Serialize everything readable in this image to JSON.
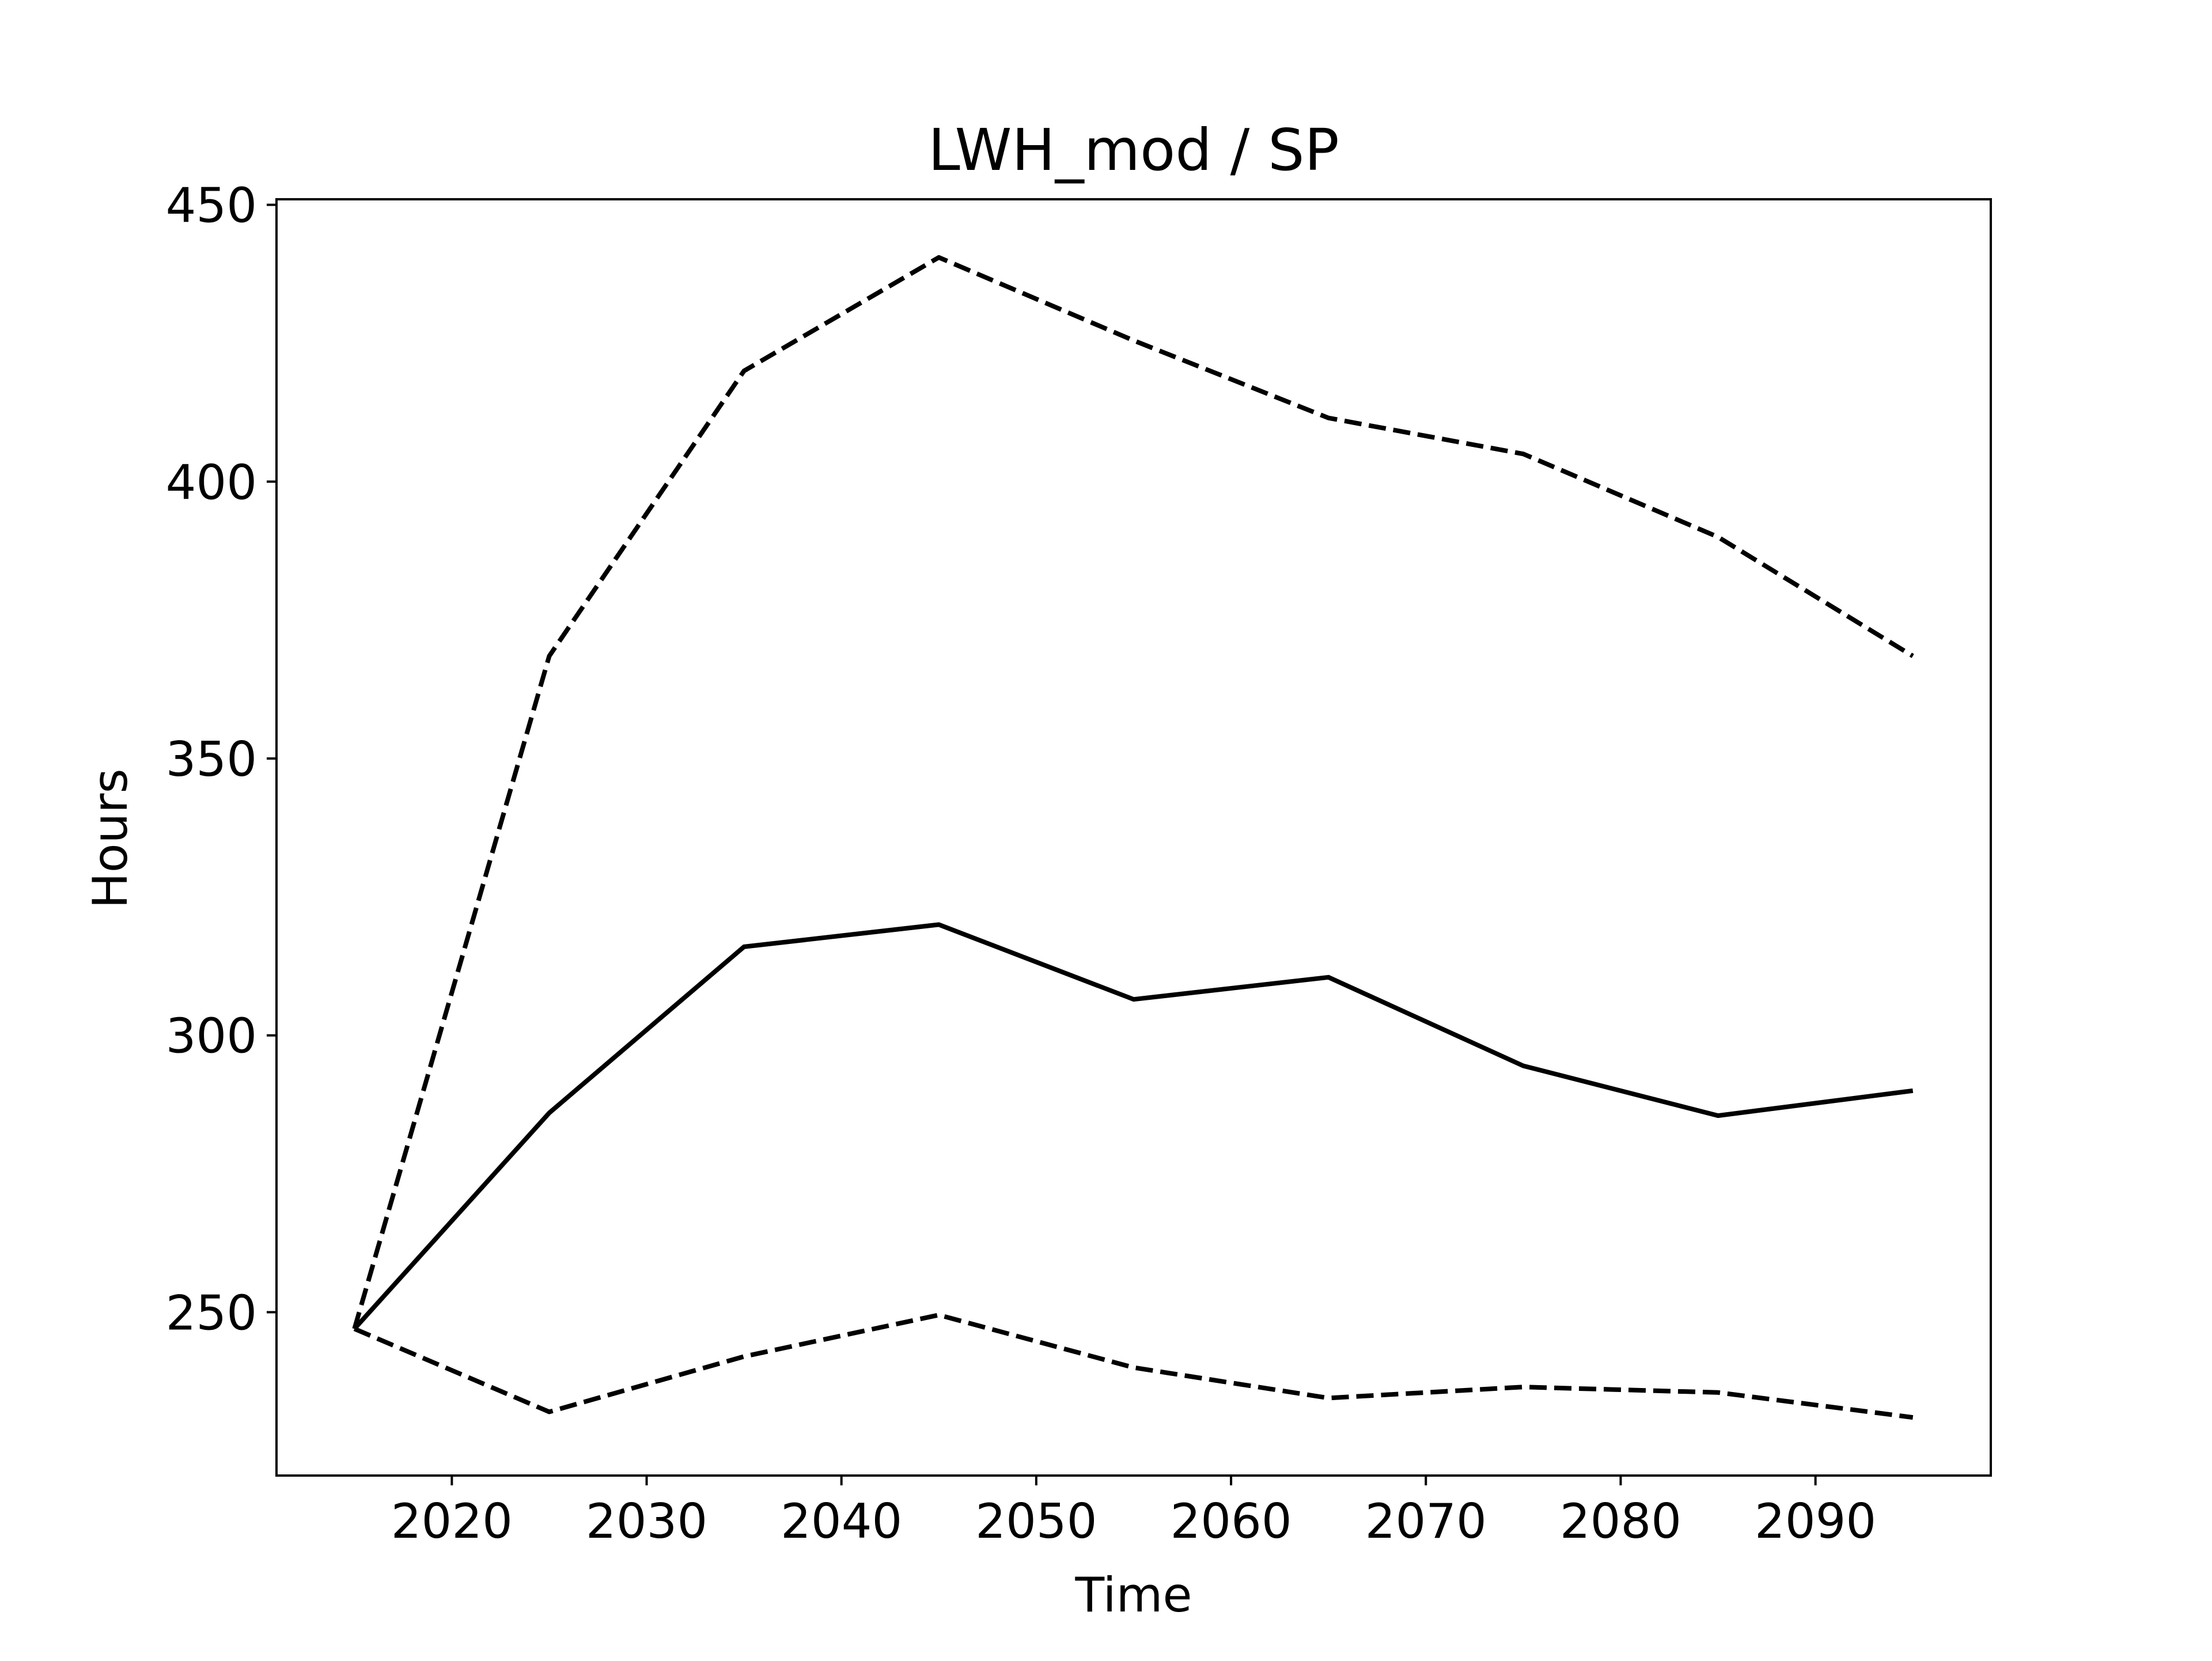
{
  "chart_data": {
    "type": "line",
    "title": "LWH_mod / SP",
    "xlabel": "Time",
    "ylabel": "Hours",
    "xlim": [
      2011,
      2099
    ],
    "ylim": [
      220.5,
      451
    ],
    "xticks": [
      2020,
      2030,
      2040,
      2050,
      2060,
      2070,
      2080,
      2090
    ],
    "yticks": [
      250,
      300,
      350,
      400,
      450
    ],
    "grid": false,
    "legend": "none",
    "x": [
      2015,
      2025,
      2035,
      2045,
      2055,
      2065,
      2075,
      2085,
      2095
    ],
    "series": [
      {
        "style": "dashed",
        "color": "#000000",
        "values": [
          247,
          368.5,
          420,
          440.5,
          425.5,
          411.5,
          405,
          390,
          368.5
        ]
      },
      {
        "style": "solid",
        "color": "#000000",
        "values": [
          247,
          286,
          316,
          320,
          306.5,
          310.5,
          294.5,
          285.5,
          290
        ]
      },
      {
        "style": "dashed",
        "color": "#000000",
        "values": [
          247,
          232,
          242,
          249.5,
          240,
          234.5,
          236.5,
          235.5,
          231
        ]
      }
    ]
  }
}
